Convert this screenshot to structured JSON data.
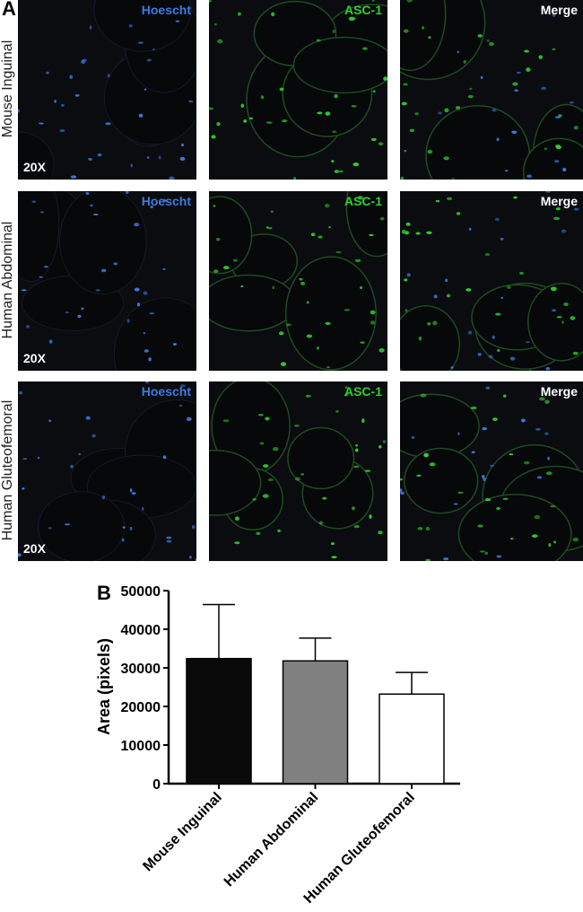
{
  "panel_a": {
    "letter": "A",
    "rows": [
      {
        "label": "Mouse Inguinal",
        "magnification": "20X"
      },
      {
        "label": "Human Abdominal",
        "magnification": "20X"
      },
      {
        "label": "Human Gluteofemoral",
        "magnification": "20X"
      }
    ],
    "channels": [
      {
        "label": "Hoescht",
        "color": "#3d7be0"
      },
      {
        "label": "ASC-1",
        "color": "#2fd12f"
      },
      {
        "label": "Merge",
        "color": "#ffffff"
      }
    ]
  },
  "chart_data": {
    "panel_letter": "B",
    "type": "bar",
    "categories": [
      "Mouse Inguinal",
      "Human Abdominal",
      "Human Gluteofemoral"
    ],
    "values": [
      32400,
      31800,
      23200
    ],
    "error_upper": [
      46400,
      37700,
      28800
    ],
    "bar_colors": [
      "#0a0a0a",
      "#808080",
      "#ffffff"
    ],
    "ylabel": "Area (pixels)",
    "xlabel": "",
    "ylim": [
      0,
      50000
    ],
    "yticks": [
      "0",
      "10000",
      "20000",
      "30000",
      "40000",
      "50000"
    ],
    "grid": false
  }
}
